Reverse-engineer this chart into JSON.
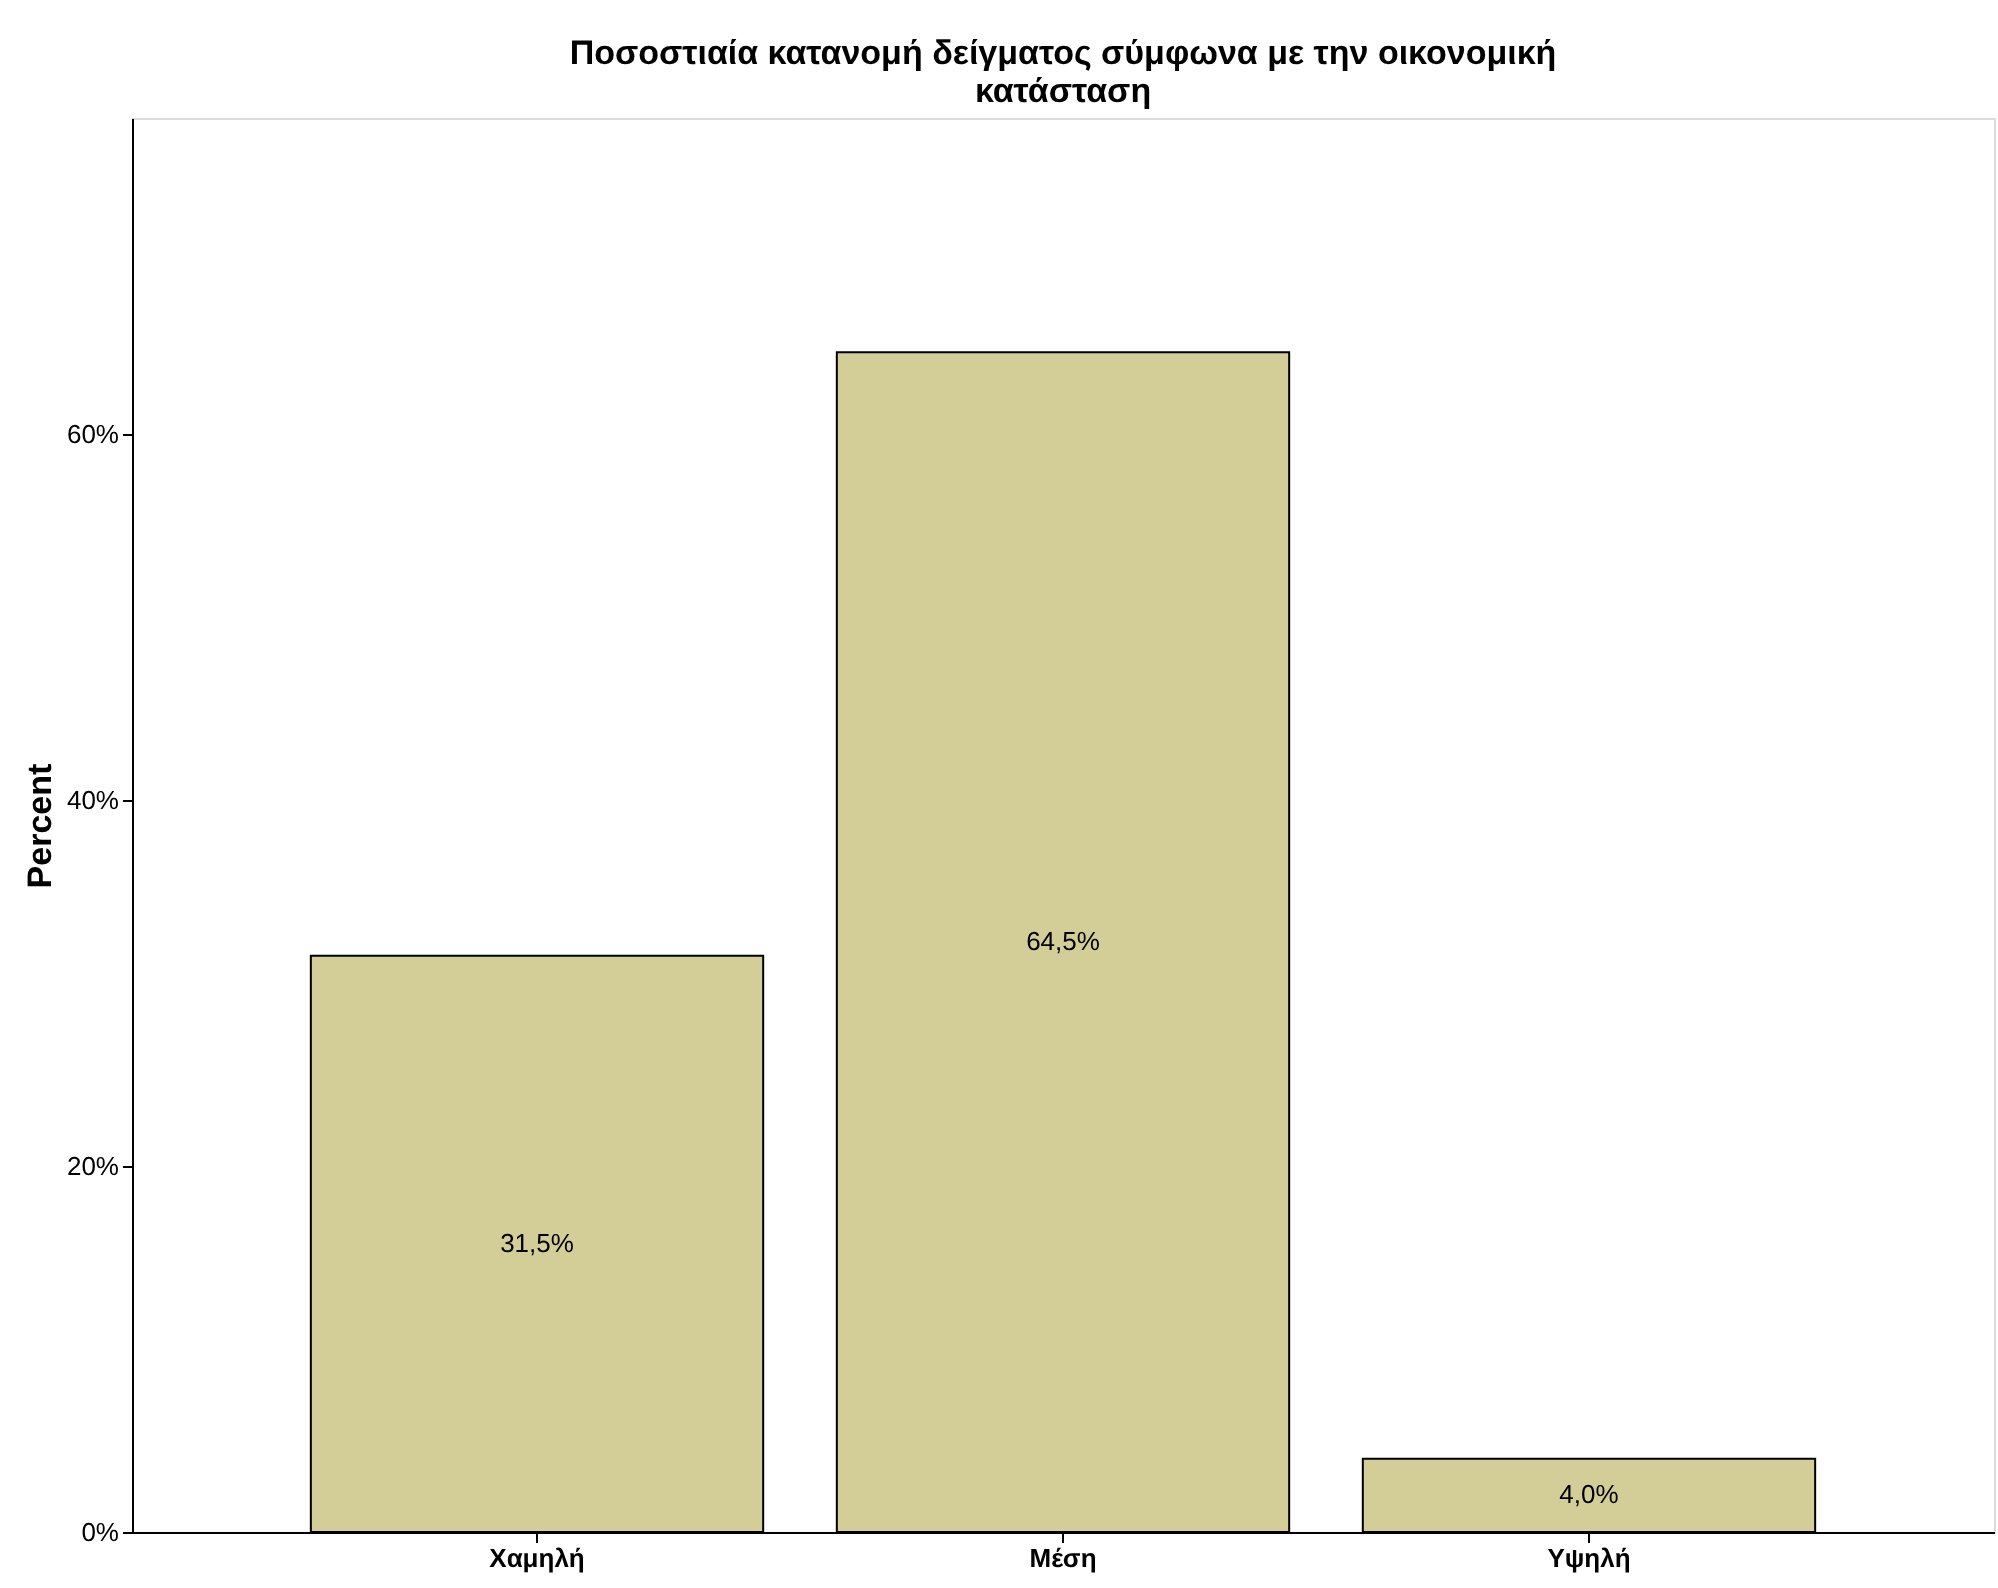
{
  "chart_data": {
    "type": "bar",
    "title": "Ποσοστιαία κατανομή δείγματος σύμφωνα με την οικονομική κατάσταση",
    "ylabel": "Percent",
    "categories": [
      "Χαμηλή",
      "Μέση",
      "Υψηλή"
    ],
    "values": [
      31.5,
      64.5,
      4.0
    ],
    "value_labels": [
      "31,5%",
      "64,5%",
      "4,0%"
    ],
    "color": "#d3cd98",
    "ylim": [
      0,
      77.3
    ],
    "yticks": [
      {
        "value": 0,
        "label": "0%"
      },
      {
        "value": 20,
        "label": "20%"
      },
      {
        "value": 40,
        "label": "40%"
      },
      {
        "value": 60,
        "label": "60%"
      }
    ],
    "grid": false
  }
}
